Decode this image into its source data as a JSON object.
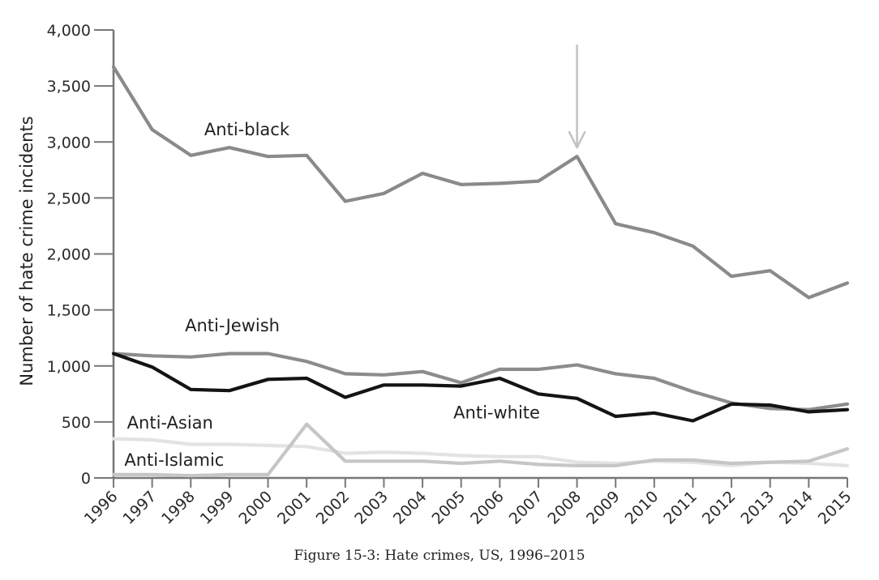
{
  "caption": "Figure 15-3: Hate crimes, US, 1996–2015",
  "chart_data": {
    "type": "line",
    "ylabel": "Number of hate crime incidents",
    "xlabel": "",
    "ylim": [
      0,
      4000
    ],
    "yticks": [
      0,
      500,
      1000,
      1500,
      2000,
      2500,
      3000,
      3500,
      4000
    ],
    "ytick_labels": [
      "0",
      "500",
      "1,000",
      "1,500",
      "2,000",
      "2,500",
      "3,000",
      "3,500",
      "4,000"
    ],
    "x": [
      "1996",
      "1997",
      "1998",
      "1999",
      "2000",
      "2001",
      "2002",
      "2003",
      "2004",
      "2005",
      "2006",
      "2007",
      "2008",
      "2009",
      "2010",
      "2011",
      "2012",
      "2013",
      "2014",
      "2015"
    ],
    "grid": false,
    "legend": "inline labels",
    "series": [
      {
        "name": "Anti-black",
        "color": "#8a8a8a",
        "values": [
          3670,
          3110,
          2880,
          2950,
          2870,
          2880,
          2470,
          2540,
          2720,
          2620,
          2630,
          2650,
          2870,
          2270,
          2190,
          2070,
          1800,
          1850,
          1610,
          1740
        ]
      },
      {
        "name": "Anti-Jewish",
        "color": "#8c8c8c",
        "values": [
          1110,
          1090,
          1080,
          1110,
          1110,
          1040,
          930,
          920,
          950,
          850,
          970,
          970,
          1010,
          930,
          890,
          770,
          670,
          620,
          610,
          660
        ]
      },
      {
        "name": "Anti-white",
        "color": "#141414",
        "values": [
          1110,
          990,
          790,
          780,
          880,
          890,
          720,
          830,
          830,
          820,
          890,
          750,
          710,
          550,
          580,
          510,
          660,
          650,
          590,
          610
        ]
      },
      {
        "name": "Anti-Asian",
        "color": "#e3e3e3",
        "values": [
          350,
          340,
          300,
          300,
          290,
          280,
          220,
          230,
          220,
          200,
          190,
          190,
          140,
          130,
          150,
          140,
          110,
          140,
          130,
          110
        ]
      },
      {
        "name": "Anti-Islamic",
        "color": "#c6c6c6",
        "values": [
          30,
          30,
          20,
          30,
          30,
          480,
          150,
          150,
          150,
          130,
          150,
          120,
          110,
          110,
          160,
          160,
          130,
          140,
          150,
          260
        ]
      }
    ],
    "annotations": [
      {
        "type": "arrow",
        "x": "2008",
        "color": "#c2c2c2"
      }
    ]
  }
}
